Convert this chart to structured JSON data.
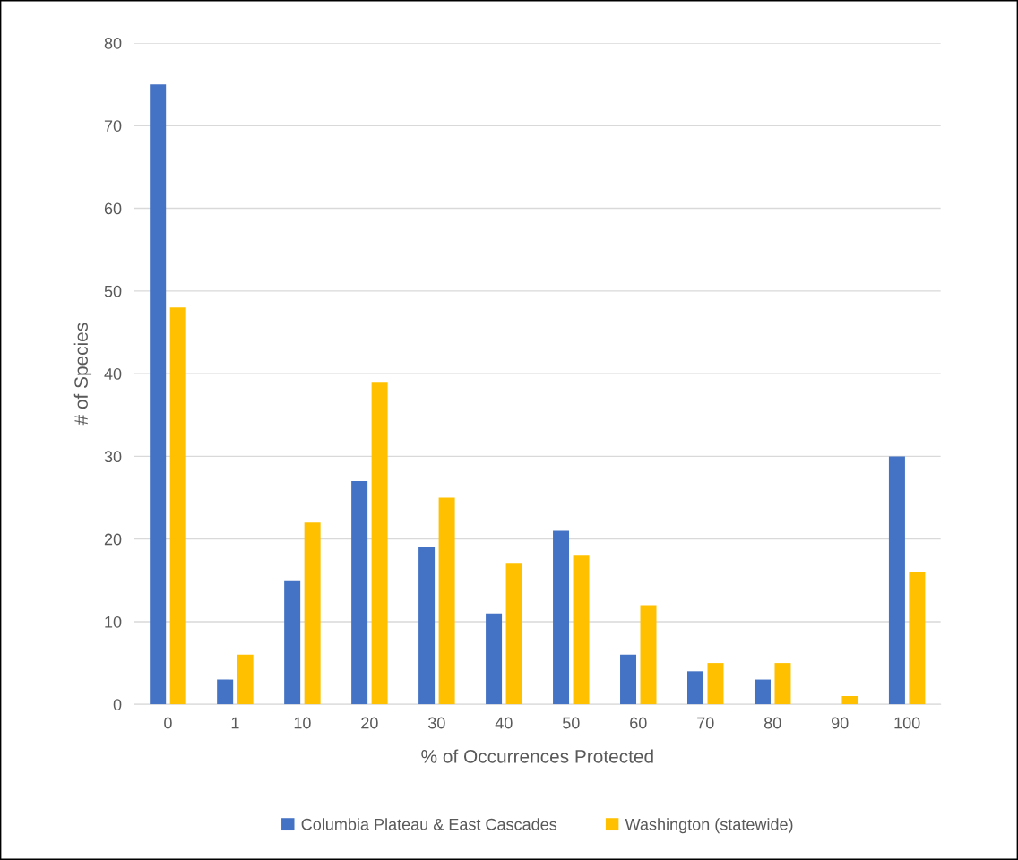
{
  "chart_data": {
    "type": "bar",
    "xlabel": "% of Occurrences Protected",
    "ylabel": "# of Species",
    "categories": [
      "0",
      "1",
      "10",
      "20",
      "30",
      "40",
      "50",
      "60",
      "70",
      "80",
      "90",
      "100"
    ],
    "series": [
      {
        "name": "Columbia Plateau & East Cascades",
        "color": "#4472c4",
        "values": [
          75,
          3,
          15,
          27,
          19,
          11,
          21,
          6,
          4,
          3,
          0,
          30
        ]
      },
      {
        "name": "Washington (statewide)",
        "color": "#ffc000",
        "values": [
          48,
          6,
          22,
          39,
          25,
          17,
          18,
          12,
          5,
          5,
          1,
          16
        ]
      }
    ],
    "ylim": [
      0,
      80
    ],
    "yticks": [
      0,
      10,
      20,
      30,
      40,
      50,
      60,
      70,
      80
    ],
    "grid": "y",
    "legend": "bottom"
  }
}
